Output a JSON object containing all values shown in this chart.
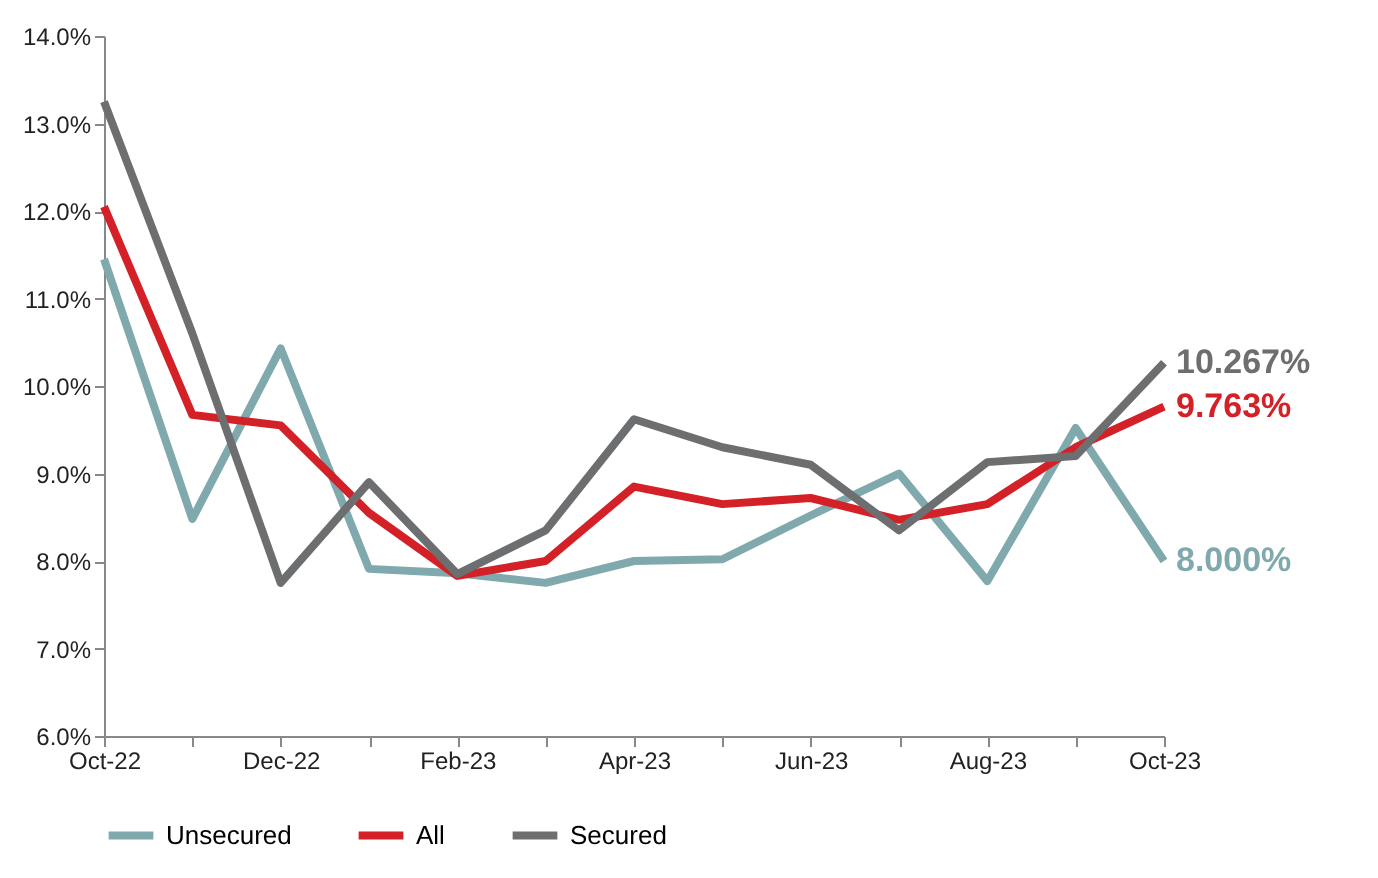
{
  "chart_data": {
    "type": "line",
    "categories": [
      "Oct-22",
      null,
      "Dec-22",
      null,
      "Feb-23",
      null,
      "Apr-23",
      null,
      "Jun-23",
      null,
      "Aug-23",
      null,
      "Oct-23"
    ],
    "series": [
      {
        "name": "Unsecured",
        "color": "#7fa9ad",
        "values": [
          11.45,
          8.48,
          10.43,
          7.91,
          7.86,
          7.75,
          8.0,
          8.02,
          8.52,
          9.0,
          7.77,
          9.52,
          8.0
        ],
        "value_labels": [
          null,
          null,
          null,
          null,
          null,
          null,
          null,
          null,
          null,
          null,
          null,
          null,
          "8.000%"
        ]
      },
      {
        "name": "All",
        "color": "#d42027",
        "values": [
          12.05,
          9.67,
          9.55,
          8.55,
          7.83,
          8.0,
          8.85,
          8.65,
          8.72,
          8.47,
          8.65,
          9.3,
          9.763
        ],
        "value_labels": [
          null,
          null,
          null,
          null,
          null,
          null,
          null,
          null,
          null,
          null,
          null,
          null,
          "9.763%"
        ]
      },
      {
        "name": "Secured",
        "color": "#6d6e70",
        "values": [
          13.25,
          10.6,
          7.75,
          8.9,
          7.85,
          8.35,
          9.62,
          9.3,
          9.1,
          8.35,
          9.13,
          9.2,
          10.267
        ],
        "value_labels": [
          null,
          null,
          null,
          null,
          null,
          null,
          null,
          null,
          null,
          null,
          null,
          null,
          "10.267%"
        ]
      }
    ],
    "ylim": [
      6,
      14
    ],
    "yticks": [
      {
        "value": 6,
        "label": "6.0%"
      },
      {
        "value": 7,
        "label": "7.0%"
      },
      {
        "value": 8,
        "label": "8.0%"
      },
      {
        "value": 9,
        "label": "9.0%"
      },
      {
        "value": 10,
        "label": "10.0%"
      },
      {
        "value": 11,
        "label": "11.0%"
      },
      {
        "value": 12,
        "label": "12.0%"
      },
      {
        "value": 13,
        "label": "13.0%"
      },
      {
        "value": 14,
        "label": "14.0%"
      }
    ],
    "grid": false,
    "legend": "bottom",
    "marker": "none",
    "line_style": "solid"
  }
}
